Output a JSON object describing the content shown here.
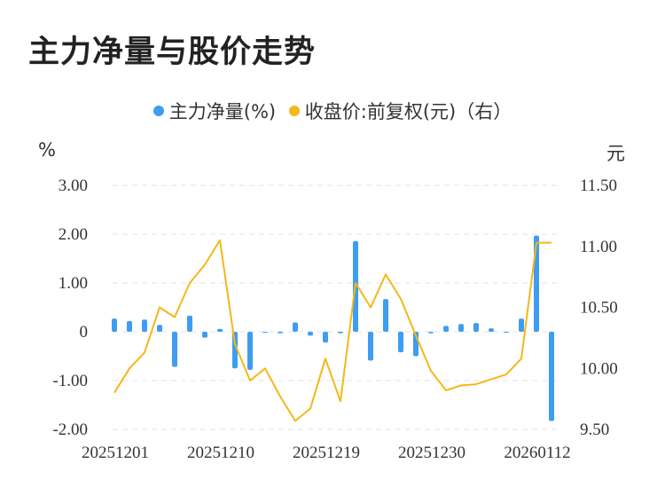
{
  "title": "主力净量与股价走势",
  "legend": {
    "main_force": "主力净量(%)",
    "price": "收盘价:前复权(元)（右）"
  },
  "units": {
    "left": "%",
    "right": "元"
  },
  "colors": {
    "bar": "#3d9df0",
    "line": "#f5b719",
    "grid": "#e3e3e3",
    "text": "#333333"
  },
  "chart_data": {
    "type": "bar+line",
    "x_tick_labels": [
      "20251201",
      "20251210",
      "20251219",
      "20251230",
      "20260112"
    ],
    "left_axis": {
      "ticks": [
        "3.00",
        "2.00",
        "1.00",
        "0",
        "-1.00",
        "-2.00"
      ],
      "ylim": [
        -2,
        3
      ]
    },
    "right_axis": {
      "ticks": [
        "11.50",
        "11.00",
        "10.50",
        "10.00",
        "9.50"
      ],
      "ylim": [
        9.5,
        11.5
      ]
    },
    "grid": true,
    "legend_position": "top-center",
    "series": [
      {
        "name": "主力净量(%)",
        "type": "bar",
        "axis": "left",
        "values": [
          0.27,
          0.22,
          0.25,
          0.14,
          -0.72,
          0.33,
          -0.12,
          0.06,
          -0.75,
          -0.78,
          -0.02,
          -0.03,
          0.19,
          -0.08,
          -0.22,
          -0.03,
          1.86,
          -0.59,
          0.67,
          -0.42,
          -0.5,
          -0.03,
          0.12,
          0.16,
          0.18,
          0.07,
          -0.02,
          0.27,
          1.97,
          -1.83
        ]
      },
      {
        "name": "收盘价:前复权(元)（右）",
        "type": "line",
        "axis": "right",
        "values": [
          9.8,
          10.0,
          10.13,
          10.5,
          10.42,
          10.7,
          10.85,
          11.05,
          10.2,
          9.9,
          10.0,
          9.77,
          9.57,
          9.67,
          10.08,
          9.73,
          10.7,
          10.5,
          10.77,
          10.57,
          10.27,
          9.98,
          9.82,
          9.86,
          9.87,
          9.91,
          9.95,
          10.08,
          11.03,
          11.03
        ]
      }
    ]
  }
}
